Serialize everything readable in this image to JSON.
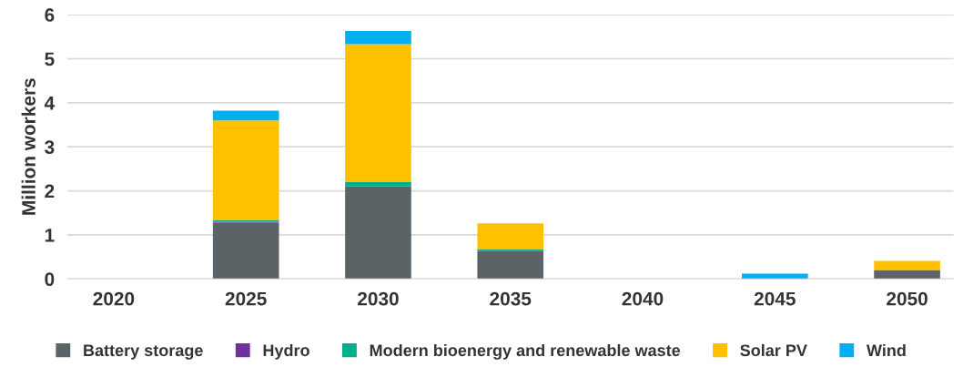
{
  "chart_data": {
    "type": "bar",
    "stacked": true,
    "ylabel": "Million workers",
    "categories": [
      "2020",
      "2025",
      "2030",
      "2035",
      "2040",
      "2045",
      "2050"
    ],
    "series": [
      {
        "name": "Battery storage",
        "color": "#5c6366",
        "values": [
          0,
          1.28,
          2.1,
          0.63,
          0,
          0,
          0.2
        ]
      },
      {
        "name": "Hydro",
        "color": "#7030a0",
        "values": [
          0,
          0.02,
          0,
          0,
          0,
          0,
          0
        ]
      },
      {
        "name": "Modern bioenergy and renewable waste",
        "color": "#00b08c",
        "values": [
          0,
          0.03,
          0.1,
          0.04,
          0,
          0,
          0
        ]
      },
      {
        "name": "Solar PV",
        "color": "#ffc000",
        "values": [
          0,
          2.27,
          3.13,
          0.59,
          0,
          0,
          0.21
        ]
      },
      {
        "name": "Wind",
        "color": "#00b0f0",
        "values": [
          null,
          0.22,
          0.3,
          0,
          0,
          0.12,
          0
        ]
      }
    ],
    "ylim": [
      0,
      6
    ],
    "yticks": [
      0,
      1,
      2,
      3,
      4,
      5,
      6
    ],
    "grid": "y",
    "legend": "bottom"
  }
}
